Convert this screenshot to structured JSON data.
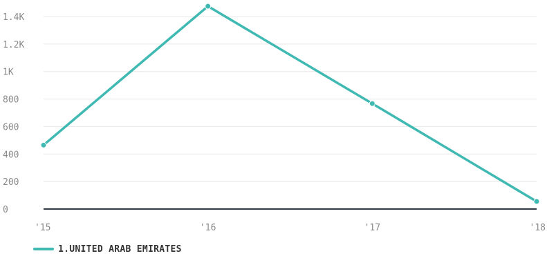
{
  "colors": {
    "series": "#40b9b3",
    "grid": "#e8e8e8",
    "baseline": "#2f3a45",
    "tick_text": "#8a8a8a",
    "legend_text": "#333333"
  },
  "chart_data": {
    "type": "line",
    "x": [
      "'15",
      "'16",
      "'17",
      "'18"
    ],
    "series": [
      {
        "name": "1.UNITED ARAB EMIRATES",
        "values": [
          465,
          1475,
          767,
          55
        ]
      }
    ],
    "y_ticks": [
      0,
      200,
      400,
      600,
      800,
      1000,
      1200,
      1400
    ],
    "y_tick_labels": [
      "0",
      "200",
      "400",
      "600",
      "800",
      "1K",
      "1.2K",
      "1.4K"
    ],
    "ylim": [
      0,
      1400
    ],
    "grid": true,
    "legend_position": "bottom-left",
    "xlabel": "",
    "ylabel": ""
  }
}
